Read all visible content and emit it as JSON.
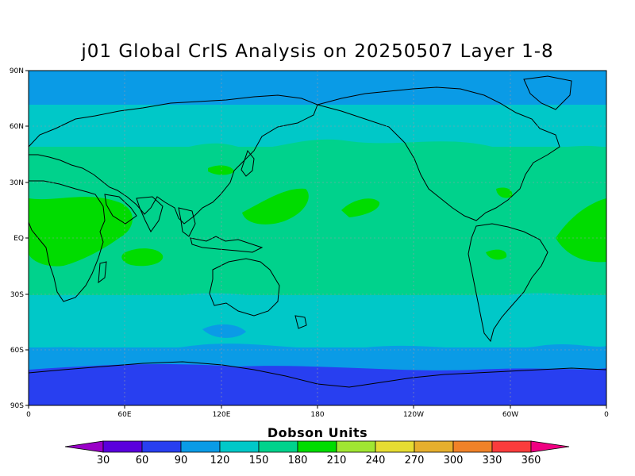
{
  "title": "j01 Global CrIS Analysis on 20250507 Layer 1-8",
  "lat_labels": [
    "90N",
    "60N",
    "30N",
    "EQ",
    "30S",
    "60S",
    "90S"
  ],
  "lon_labels": [
    "0",
    "60E",
    "120E",
    "180",
    "120W",
    "60W",
    "0"
  ],
  "colorbar": {
    "title": "Dobson Units",
    "ticks": [
      "30",
      "60",
      "90",
      "120",
      "150",
      "180",
      "210",
      "240",
      "270",
      "300",
      "330",
      "360"
    ],
    "colors": [
      "#9a00c8",
      "#5a00dc",
      "#283ff0",
      "#0a9be6",
      "#00c8c8",
      "#00d28c",
      "#00dc00",
      "#a0e632",
      "#e6dc32",
      "#e6af2d",
      "#f08228",
      "#fa3c3c",
      "#f00082"
    ]
  },
  "map_colors": {
    "polar_south": "#283ff0",
    "band_90_120": "#0a9be6",
    "band_120_150": "#00c8c8",
    "band_150_180": "#00d28c",
    "band_180_210": "#00dc00"
  }
}
